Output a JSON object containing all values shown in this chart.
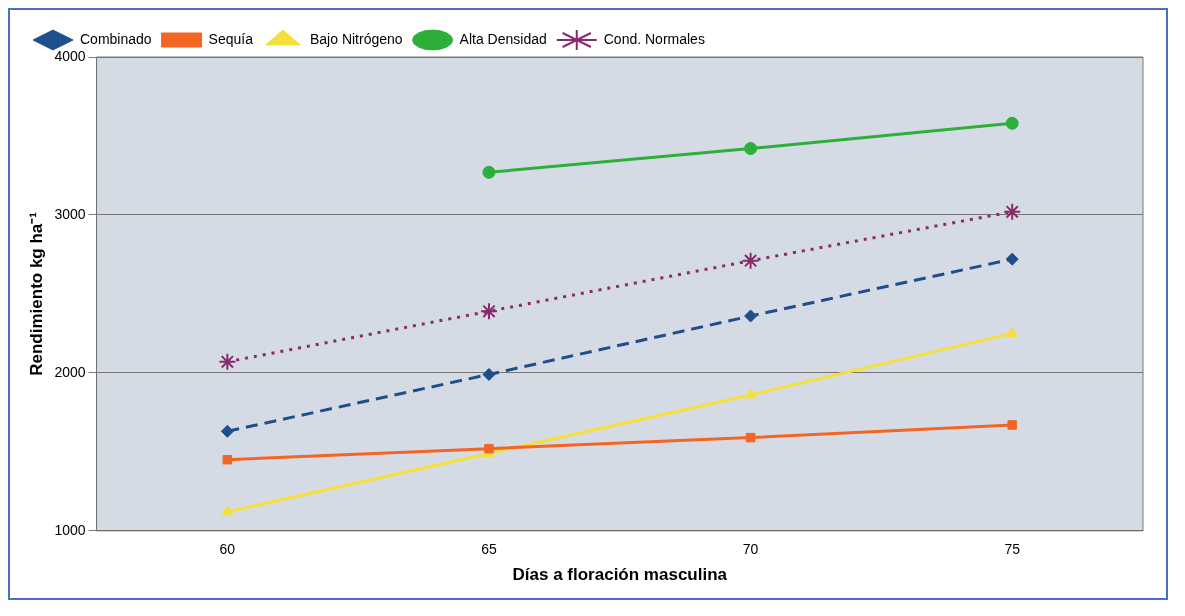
{
  "chart_data": {
    "type": "line",
    "xlabel": "Días a floración masculina",
    "ylabel": "Rendimiento kg ha⁻¹",
    "categories": [
      "60",
      "65",
      "70",
      "75"
    ],
    "ylim": [
      1000,
      4000
    ],
    "yticks": [
      1000,
      2000,
      3000,
      4000
    ],
    "grid": "y",
    "legend": "top left",
    "series": [
      {
        "name": "Combinado",
        "color": "#1f4e8c",
        "marker": "diamond",
        "line_style": "dashed",
        "values": [
          1630,
          1990,
          2360,
          2720
        ]
      },
      {
        "name": "Sequía",
        "color": "#f26522",
        "marker": "square",
        "line_style": "solid",
        "values": [
          1450,
          1520,
          1590,
          1670
        ]
      },
      {
        "name": "Bajo Nitrógeno",
        "color": "#f5e03a",
        "marker": "triangle",
        "line_style": "solid",
        "values": [
          1120,
          1490,
          1860,
          2250
        ]
      },
      {
        "name": "Alta Densidad",
        "color": "#2db03a",
        "marker": "circle",
        "line_style": "solid",
        "values": [
          null,
          3270,
          3420,
          3580
        ]
      },
      {
        "name": "Cond. Normales",
        "color": "#8b2a6a",
        "marker": "cross",
        "line_style": "dotted",
        "values": [
          2070,
          2390,
          2710,
          3020
        ]
      }
    ]
  }
}
